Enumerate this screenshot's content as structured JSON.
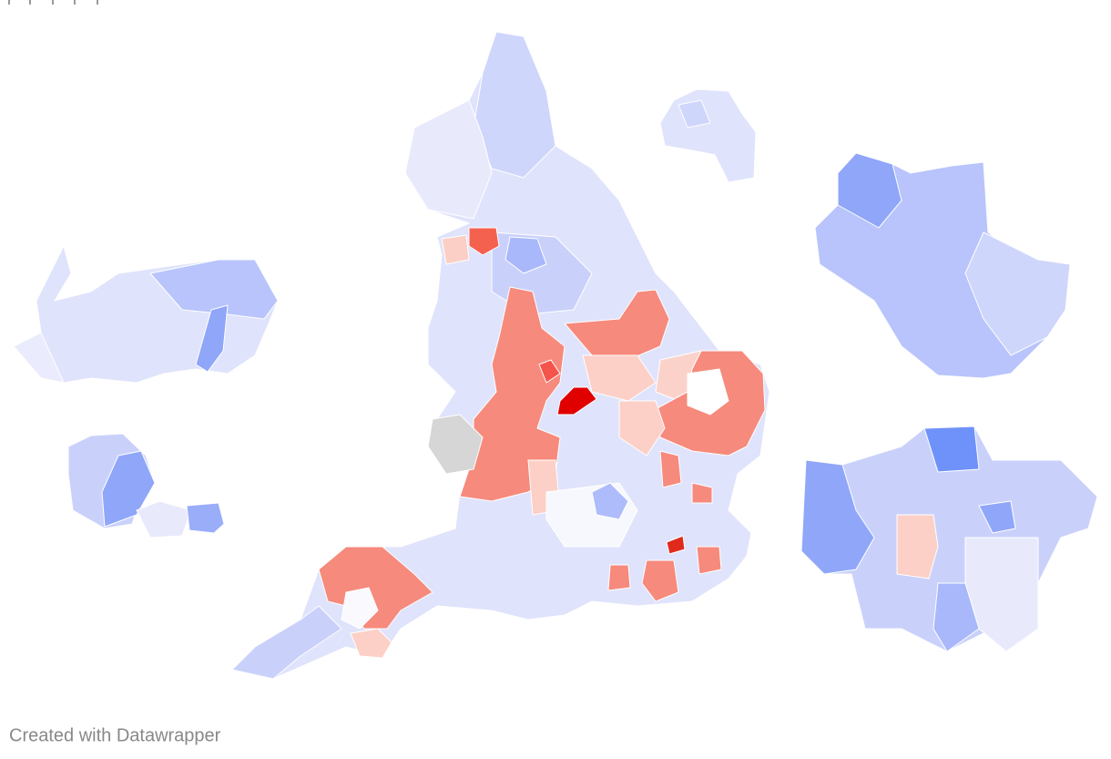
{
  "footer": {
    "credit": "Created with Datawrapper"
  }
}
